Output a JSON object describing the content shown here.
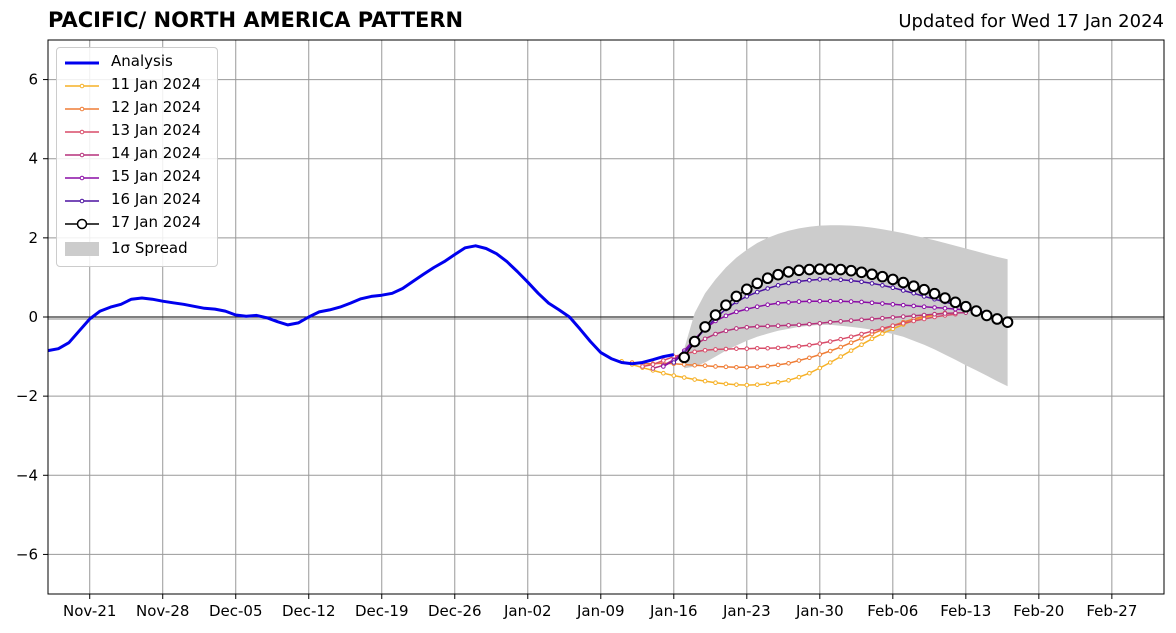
{
  "header": {
    "title": "PACIFIC/ NORTH AMERICA PATTERN",
    "updated": "Updated for Wed 17 Jan 2024"
  },
  "chart_data": {
    "type": "line",
    "title": "PACIFIC/ NORTH AMERICA PATTERN",
    "xlabel": "",
    "ylabel": "",
    "xlim": [
      "2023-11-17",
      "2024-03-03"
    ],
    "ylim": [
      -7,
      7
    ],
    "grid": true,
    "legend_position": "top-left",
    "x_ticks": [
      "Nov-21",
      "Nov-28",
      "Dec-05",
      "Dec-12",
      "Dec-19",
      "Dec-26",
      "Jan-02",
      "Jan-09",
      "Jan-16",
      "Jan-23",
      "Jan-30",
      "Feb-06",
      "Feb-13",
      "Feb-20",
      "Feb-27"
    ],
    "y_ticks": [
      "6",
      "4",
      "2",
      "0",
      "−2",
      "−4",
      "−6"
    ],
    "analysis": {
      "name": "Analysis",
      "color": "#0000ee",
      "x": [
        "2023-11-17",
        "2023-11-18",
        "2023-11-19",
        "2023-11-20",
        "2023-11-21",
        "2023-11-22",
        "2023-11-23",
        "2023-11-24",
        "2023-11-25",
        "2023-11-26",
        "2023-11-27",
        "2023-11-28",
        "2023-11-29",
        "2023-11-30",
        "2023-12-01",
        "2023-12-02",
        "2023-12-03",
        "2023-12-04",
        "2023-12-05",
        "2023-12-06",
        "2023-12-07",
        "2023-12-08",
        "2023-12-09",
        "2023-12-10",
        "2023-12-11",
        "2023-12-12",
        "2023-12-13",
        "2023-12-14",
        "2023-12-15",
        "2023-12-16",
        "2023-12-17",
        "2023-12-18",
        "2023-12-19",
        "2023-12-20",
        "2023-12-21",
        "2023-12-22",
        "2023-12-23",
        "2023-12-24",
        "2023-12-25",
        "2023-12-26",
        "2023-12-27",
        "2023-12-28",
        "2023-12-29",
        "2023-12-30",
        "2023-12-31",
        "2024-01-01",
        "2024-01-02",
        "2024-01-03",
        "2024-01-04",
        "2024-01-05",
        "2024-01-06",
        "2024-01-07",
        "2024-01-08",
        "2024-01-09",
        "2024-01-10",
        "2024-01-11",
        "2024-01-12",
        "2024-01-13",
        "2024-01-14",
        "2024-01-15",
        "2024-01-16"
      ],
      "values": [
        -0.85,
        -0.8,
        -0.65,
        -0.35,
        -0.05,
        0.15,
        0.25,
        0.32,
        0.45,
        0.48,
        0.45,
        0.4,
        0.36,
        0.32,
        0.27,
        0.22,
        0.2,
        0.15,
        0.05,
        0.02,
        0.04,
        -0.02,
        -0.12,
        -0.2,
        -0.15,
        0.0,
        0.13,
        0.18,
        0.25,
        0.35,
        0.46,
        0.52,
        0.55,
        0.6,
        0.72,
        0.9,
        1.08,
        1.25,
        1.4,
        1.58,
        1.75,
        1.8,
        1.73,
        1.6,
        1.4,
        1.15,
        0.88,
        0.6,
        0.35,
        0.18,
        0.0,
        -0.3,
        -0.62,
        -0.9,
        -1.05,
        -1.15,
        -1.18,
        -1.15,
        -1.08,
        -1.0,
        -0.95
      ]
    },
    "forecasts": [
      {
        "name": "11 Jan 2024",
        "color": "#f6b127",
        "start": "2024-01-11",
        "values": [
          -1.12,
          -1.2,
          -1.28,
          -1.35,
          -1.42,
          -1.48,
          -1.53,
          -1.58,
          -1.62,
          -1.66,
          -1.69,
          -1.71,
          -1.72,
          -1.71,
          -1.69,
          -1.65,
          -1.6,
          -1.52,
          -1.42,
          -1.29,
          -1.15,
          -1.0,
          -0.85,
          -0.7,
          -0.55,
          -0.42,
          -0.3,
          -0.19,
          -0.09,
          -0.01,
          0.05
        ]
      },
      {
        "name": "12 Jan 2024",
        "color": "#ef7d36",
        "start": "2024-01-12",
        "values": [
          -1.15,
          -1.18,
          -1.18,
          -1.17,
          -1.18,
          -1.2,
          -1.22,
          -1.23,
          -1.25,
          -1.26,
          -1.27,
          -1.27,
          -1.26,
          -1.24,
          -1.21,
          -1.17,
          -1.1,
          -1.03,
          -0.95,
          -0.86,
          -0.76,
          -0.65,
          -0.54,
          -0.43,
          -0.32,
          -0.22,
          -0.13,
          -0.05,
          0.02,
          0.07,
          0.1
        ]
      },
      {
        "name": "13 Jan 2024",
        "color": "#d84c69",
        "start": "2024-01-13",
        "values": [
          -1.25,
          -1.2,
          -1.1,
          -1.0,
          -0.93,
          -0.88,
          -0.84,
          -0.82,
          -0.81,
          -0.8,
          -0.8,
          -0.79,
          -0.79,
          -0.78,
          -0.76,
          -0.74,
          -0.71,
          -0.67,
          -0.62,
          -0.56,
          -0.5,
          -0.43,
          -0.36,
          -0.29,
          -0.22,
          -0.16,
          -0.1,
          -0.05,
          0.0,
          0.04,
          0.07
        ]
      },
      {
        "name": "14 Jan 2024",
        "color": "#b6317b",
        "start": "2024-01-14",
        "values": [
          -1.3,
          -1.22,
          -1.08,
          -0.9,
          -0.7,
          -0.55,
          -0.43,
          -0.35,
          -0.29,
          -0.26,
          -0.24,
          -0.23,
          -0.22,
          -0.21,
          -0.2,
          -0.18,
          -0.16,
          -0.13,
          -0.11,
          -0.09,
          -0.07,
          -0.05,
          -0.03,
          -0.01,
          0.01,
          0.03,
          0.05,
          0.07,
          0.09,
          0.1,
          0.11
        ]
      },
      {
        "name": "15 Jan 2024",
        "color": "#8a0da6",
        "start": "2024-01-15",
        "values": [
          -1.25,
          -1.1,
          -0.85,
          -0.55,
          -0.3,
          -0.1,
          0.03,
          0.13,
          0.2,
          0.26,
          0.31,
          0.35,
          0.37,
          0.39,
          0.4,
          0.4,
          0.4,
          0.4,
          0.39,
          0.38,
          0.36,
          0.34,
          0.32,
          0.3,
          0.28,
          0.26,
          0.24,
          0.22,
          0.2,
          0.18,
          0.16
        ]
      },
      {
        "name": "16 Jan 2024",
        "color": "#4b11a0",
        "start": "2024-01-16",
        "values": [
          -1.15,
          -0.9,
          -0.6,
          -0.3,
          -0.03,
          0.2,
          0.38,
          0.52,
          0.63,
          0.72,
          0.8,
          0.86,
          0.9,
          0.93,
          0.95,
          0.95,
          0.94,
          0.92,
          0.89,
          0.85,
          0.8,
          0.74,
          0.67,
          0.6,
          0.52,
          0.45,
          0.38,
          0.31,
          0.24,
          0.17,
          0.1
        ]
      }
    ],
    "current_forecast": {
      "name": "17 Jan 2024",
      "color": "#000000",
      "start": "2024-01-17",
      "values": [
        -1.02,
        -0.62,
        -0.25,
        0.05,
        0.3,
        0.52,
        0.7,
        0.85,
        0.98,
        1.07,
        1.14,
        1.18,
        1.2,
        1.21,
        1.21,
        1.2,
        1.17,
        1.13,
        1.08,
        1.02,
        0.95,
        0.87,
        0.78,
        0.69,
        0.59,
        0.48,
        0.37,
        0.26,
        0.15,
        0.04,
        -0.05,
        -0.13
      ]
    },
    "spread": {
      "name": "1σ Spread",
      "color": "#cccccc",
      "start": "2024-01-17",
      "upper": [
        -0.8,
        0.1,
        0.6,
        0.95,
        1.25,
        1.5,
        1.7,
        1.87,
        2.0,
        2.1,
        2.18,
        2.24,
        2.28,
        2.31,
        2.32,
        2.32,
        2.31,
        2.29,
        2.26,
        2.22,
        2.17,
        2.12,
        2.06,
        2.0,
        1.94,
        1.87,
        1.8,
        1.73,
        1.66,
        1.59,
        1.52,
        1.46
      ],
      "lower": [
        -1.3,
        -1.25,
        -1.15,
        -1.0,
        -0.85,
        -0.72,
        -0.6,
        -0.5,
        -0.42,
        -0.35,
        -0.3,
        -0.25,
        -0.22,
        -0.2,
        -0.2,
        -0.22,
        -0.25,
        -0.28,
        -0.32,
        -0.37,
        -0.43,
        -0.5,
        -0.6,
        -0.7,
        -0.82,
        -0.95,
        -1.08,
        -1.22,
        -1.35,
        -1.48,
        -1.62,
        -1.75
      ]
    }
  }
}
